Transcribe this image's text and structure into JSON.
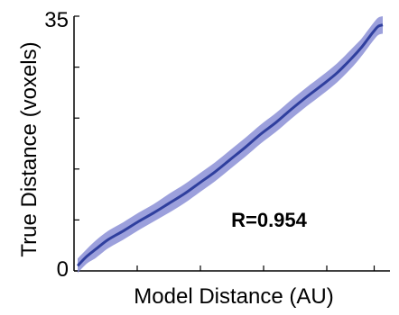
{
  "chart_data": {
    "type": "line",
    "xlabel": "Model Distance (AU)",
    "ylabel": "True Distance (voxels)",
    "ylim": [
      0,
      35
    ],
    "ytick_labels": [
      "0",
      "35"
    ],
    "annotation": "R=0.954",
    "grid": false,
    "line_color": "#2f3f9e",
    "band_color": "#7b80d0",
    "series": [
      {
        "x": [
          0.0,
          0.03,
          0.06,
          0.1,
          0.15,
          0.2,
          0.25,
          0.3,
          0.35,
          0.4,
          0.45,
          0.5,
          0.55,
          0.6,
          0.65,
          0.7,
          0.75,
          0.8,
          0.85,
          0.9,
          0.93,
          0.95,
          0.97,
          0.985,
          1.0
        ],
        "y": [
          0.7,
          2.0,
          3.0,
          4.3,
          5.5,
          6.8,
          8.0,
          9.3,
          10.6,
          12.1,
          13.6,
          15.3,
          17.0,
          18.8,
          20.4,
          22.2,
          23.9,
          25.5,
          27.2,
          29.3,
          30.7,
          31.8,
          32.9,
          33.6,
          33.8
        ],
        "band": [
          1.0,
          1.0,
          1.2,
          1.2,
          1.2,
          1.2,
          1.2,
          1.3,
          1.3,
          1.3,
          1.3,
          1.3,
          1.3,
          1.3,
          1.3,
          1.3,
          1.3,
          1.3,
          1.3,
          1.3,
          1.2,
          1.2,
          1.2,
          1.2,
          1.2
        ]
      }
    ]
  }
}
